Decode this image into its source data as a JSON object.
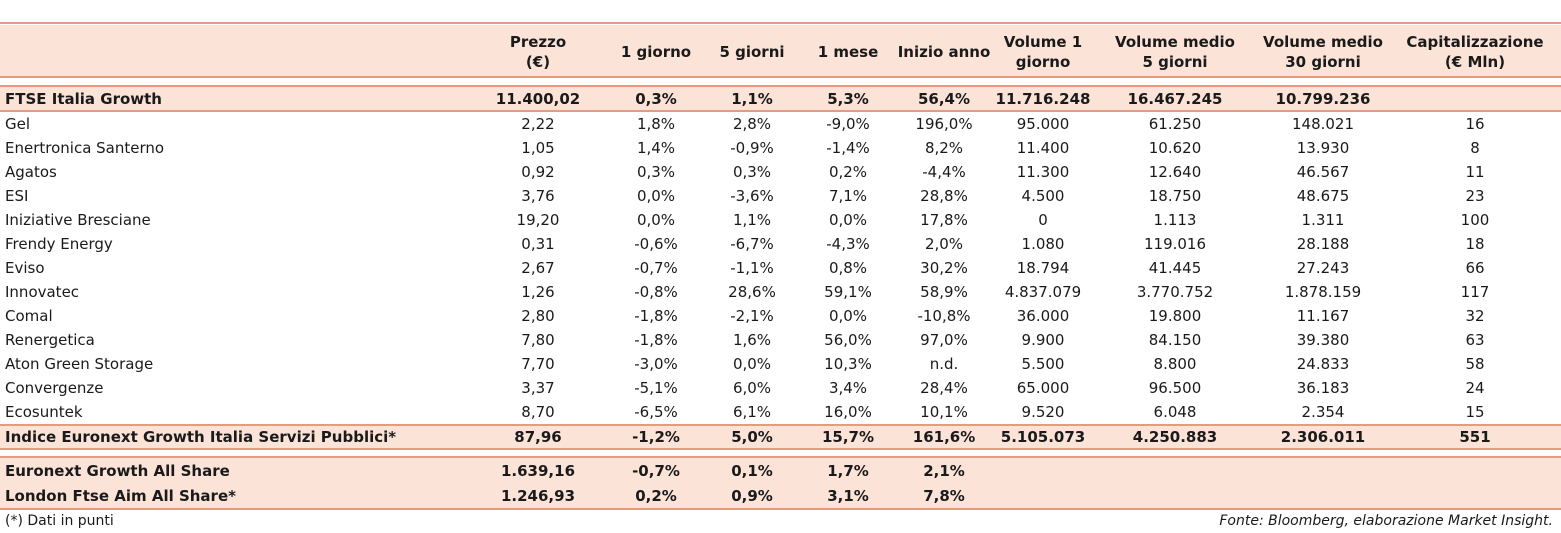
{
  "header": {
    "columns": [
      "Prezzo\n(€)",
      "1 giorno",
      "5 giorni",
      "1 mese",
      "Inizio anno",
      "Volume 1\ngiorno",
      "Volume medio\n5 giorni",
      "Volume medio\n30 giorni",
      "Capitalizzazione\n(€ Mln)"
    ]
  },
  "index_row": {
    "name": "FTSE Italia Growth",
    "values": [
      "11.400,02",
      "0,3%",
      "1,1%",
      "5,3%",
      "56,4%",
      "11.716.248",
      "16.467.245",
      "10.799.236",
      ""
    ]
  },
  "rows": [
    {
      "name": "Gel",
      "values": [
        "2,22",
        "1,8%",
        "2,8%",
        "-9,0%",
        "196,0%",
        "95.000",
        "61.250",
        "148.021",
        "16"
      ]
    },
    {
      "name": "Enertronica Santerno",
      "values": [
        "1,05",
        "1,4%",
        "-0,9%",
        "-1,4%",
        "8,2%",
        "11.400",
        "10.620",
        "13.930",
        "8"
      ]
    },
    {
      "name": "Agatos",
      "values": [
        "0,92",
        "0,3%",
        "0,3%",
        "0,2%",
        "-4,4%",
        "11.300",
        "12.640",
        "46.567",
        "11"
      ]
    },
    {
      "name": "ESI",
      "values": [
        "3,76",
        "0,0%",
        "-3,6%",
        "7,1%",
        "28,8%",
        "4.500",
        "18.750",
        "48.675",
        "23"
      ]
    },
    {
      "name": "Iniziative Bresciane",
      "values": [
        "19,20",
        "0,0%",
        "1,1%",
        "0,0%",
        "17,8%",
        "0",
        "1.113",
        "1.311",
        "100"
      ]
    },
    {
      "name": "Frendy Energy",
      "values": [
        "0,31",
        "-0,6%",
        "-6,7%",
        "-4,3%",
        "2,0%",
        "1.080",
        "119.016",
        "28.188",
        "18"
      ]
    },
    {
      "name": "Eviso",
      "values": [
        "2,67",
        "-0,7%",
        "-1,1%",
        "0,8%",
        "30,2%",
        "18.794",
        "41.445",
        "27.243",
        "66"
      ]
    },
    {
      "name": "Innovatec",
      "values": [
        "1,26",
        "-0,8%",
        "28,6%",
        "59,1%",
        "58,9%",
        "4.837.079",
        "3.770.752",
        "1.878.159",
        "117"
      ]
    },
    {
      "name": "Comal",
      "values": [
        "2,80",
        "-1,8%",
        "-2,1%",
        "0,0%",
        "-10,8%",
        "36.000",
        "19.800",
        "11.167",
        "32"
      ]
    },
    {
      "name": "Renergetica",
      "values": [
        "7,80",
        "-1,8%",
        "1,6%",
        "56,0%",
        "97,0%",
        "9.900",
        "84.150",
        "39.380",
        "63"
      ]
    },
    {
      "name": "Aton Green Storage",
      "values": [
        "7,70",
        "-3,0%",
        "0,0%",
        "10,3%",
        "n.d.",
        "5.500",
        "8.800",
        "24.833",
        "58"
      ]
    },
    {
      "name": "Convergenze",
      "values": [
        "3,37",
        "-5,1%",
        "6,0%",
        "3,4%",
        "28,4%",
        "65.000",
        "96.500",
        "36.183",
        "24"
      ]
    },
    {
      "name": "Ecosuntek",
      "values": [
        "8,70",
        "-6,5%",
        "6,1%",
        "16,0%",
        "10,1%",
        "9.520",
        "6.048",
        "2.354",
        "15"
      ]
    }
  ],
  "sector_row": {
    "name": "Indice Euronext Growth Italia Servizi Pubblici*",
    "values": [
      "87,96",
      "-1,2%",
      "5,0%",
      "15,7%",
      "161,6%",
      "5.105.073",
      "4.250.883",
      "2.306.011",
      "551"
    ]
  },
  "market_rows": [
    {
      "name": "Euronext Growth All Share",
      "values": [
        "1.639,16",
        "-0,7%",
        "0,1%",
        "1,7%",
        "2,1%",
        "",
        "",
        "",
        ""
      ]
    },
    {
      "name": "London Ftse Aim All Share*",
      "values": [
        "1.246,93",
        "0,2%",
        "0,9%",
        "3,1%",
        "7,8%",
        "",
        "",
        "",
        ""
      ]
    }
  ],
  "footer": {
    "note": "(*) Dati in punti",
    "source": "Fonte: Bloomberg, elaborazione Market Insight."
  },
  "colors": {
    "rule": "#e79a80",
    "band": "#fbe3d8"
  }
}
